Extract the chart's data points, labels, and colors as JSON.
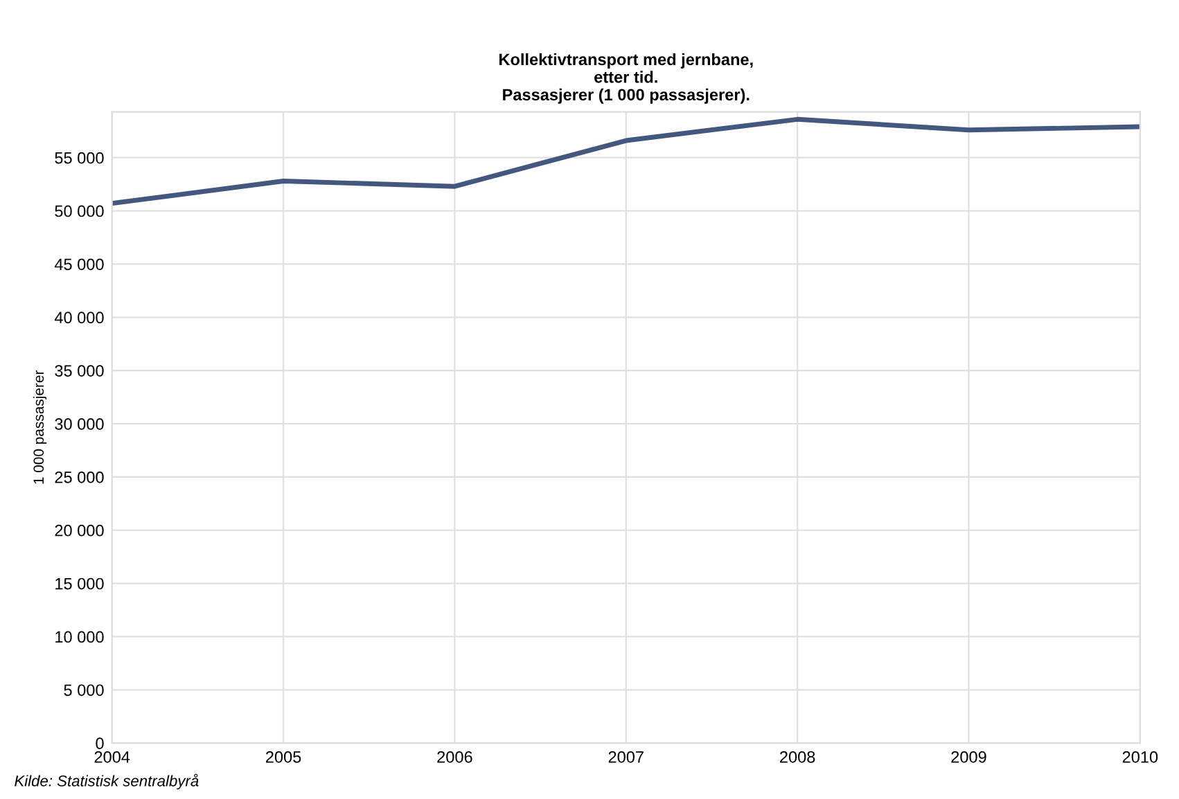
{
  "chart_data": {
    "type": "line",
    "title": "Kollektivtransport med jernbane,\netter tid.\nPassasjerer (1 000 passasjerer).",
    "ylabel": "1 000 passasjerer",
    "annotations": [
      "Kilde: Statistisk sentralbyrå"
    ],
    "x": [
      2004,
      2005,
      2006,
      2007,
      2008,
      2009,
      2010
    ],
    "series": [
      {
        "color": "#44587f",
        "values": [
          50700,
          52800,
          52300,
          56600,
          58600,
          57600,
          57900
        ]
      }
    ],
    "xlim": [
      2004,
      2010
    ],
    "xticks": [
      2004,
      2005,
      2006,
      2007,
      2008,
      2009,
      2010
    ],
    "ylim": [
      0,
      59300
    ],
    "yticks": [
      {
        "value": 0,
        "label": "0"
      },
      {
        "value": 5000,
        "label": "5 000"
      },
      {
        "value": 10000,
        "label": "10 000"
      },
      {
        "value": 15000,
        "label": "15 000"
      },
      {
        "value": 20000,
        "label": "20 000"
      },
      {
        "value": 25000,
        "label": "25 000"
      },
      {
        "value": 30000,
        "label": "30 000"
      },
      {
        "value": 35000,
        "label": "35 000"
      },
      {
        "value": 40000,
        "label": "40 000"
      },
      {
        "value": 45000,
        "label": "45 000"
      },
      {
        "value": 50000,
        "label": "50 000"
      },
      {
        "value": 55000,
        "label": "55 000"
      }
    ],
    "grid": true,
    "legend": false,
    "marker": "none",
    "line_style": "solid"
  }
}
